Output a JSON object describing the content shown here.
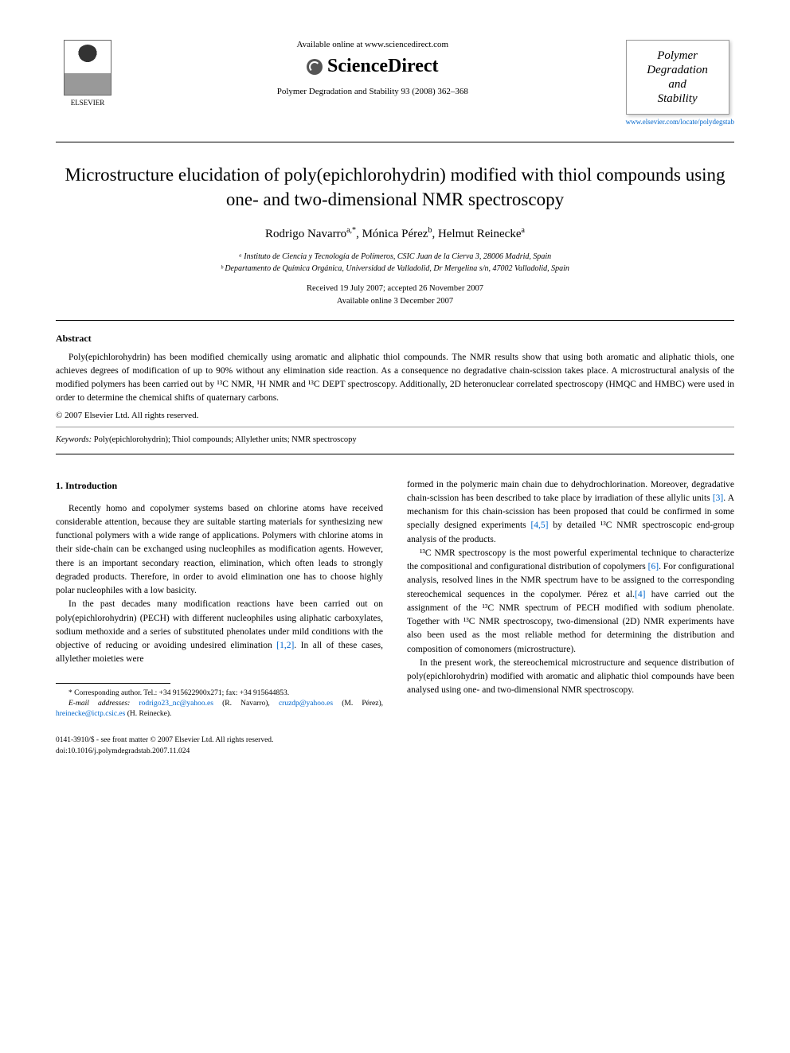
{
  "header": {
    "publisher_name": "ELSEVIER",
    "available_text": "Available online at www.sciencedirect.com",
    "sciencedirect_label": "ScienceDirect",
    "journal_reference": "Polymer Degradation and Stability 93 (2008) 362–368",
    "journal_box_line1": "Polymer",
    "journal_box_line2": "Degradation",
    "journal_box_line3": "and",
    "journal_box_line4": "Stability",
    "journal_url": "www.elsevier.com/locate/polydegstab"
  },
  "title": "Microstructure elucidation of poly(epichlorohydrin) modified with thiol compounds using one- and two-dimensional NMR spectroscopy",
  "authors": {
    "a1_name": "Rodrigo Navarro",
    "a1_sup": "a,*",
    "a2_name": "Mónica Pérez",
    "a2_sup": "b",
    "a3_name": "Helmut Reinecke",
    "a3_sup": "a"
  },
  "affiliations": {
    "aff_a": "ᵃ Instituto de Ciencia y Tecnología de Polímeros, CSIC Juan de la Cierva 3, 28006 Madrid, Spain",
    "aff_b": "ᵇ Departamento de Química Orgánica, Universidad de Valladolid, Dr Mergelina s/n, 47002 Valladolid, Spain"
  },
  "dates": {
    "received": "Received 19 July 2007; accepted 26 November 2007",
    "online": "Available online 3 December 2007"
  },
  "abstract": {
    "heading": "Abstract",
    "text": "Poly(epichlorohydrin) has been modified chemically using aromatic and aliphatic thiol compounds. The NMR results show that using both aromatic and aliphatic thiols, one achieves degrees of modification of up to 90% without any elimination side reaction. As a consequence no degradative chain-scission takes place. A microstructural analysis of the modified polymers has been carried out by ¹³C NMR, ¹H NMR and ¹³C DEPT spectroscopy. Additionally, 2D heteronuclear correlated spectroscopy (HMQC and HMBC) were used in order to determine the chemical shifts of quaternary carbons.",
    "copyright": "© 2007 Elsevier Ltd. All rights reserved."
  },
  "keywords": {
    "label": "Keywords:",
    "text": " Poly(epichlorohydrin); Thiol compounds; Allylether units; NMR spectroscopy"
  },
  "body": {
    "section_heading": "1. Introduction",
    "col1_p1": "Recently homo and copolymer systems based on chlorine atoms have received considerable attention, because they are suitable starting materials for synthesizing new functional polymers with a wide range of applications. Polymers with chlorine atoms in their side-chain can be exchanged using nucleophiles as modification agents. However, there is an important secondary reaction, elimination, which often leads to strongly degraded products. Therefore, in order to avoid elimination one has to choose highly polar nucleophiles with a low basicity.",
    "col1_p2a": "In the past decades many modification reactions have been carried out on poly(epichlorohydrin) (PECH) with different nucleophiles using aliphatic carboxylates, sodium methoxide and a series of substituted phenolates under mild conditions with the objective of reducing or avoiding undesired elimination ",
    "col1_p2_ref": "[1,2]",
    "col1_p2b": ". In all of these cases, allylether moieties were",
    "col2_p1a": "formed in the polymeric main chain due to dehydrochlorination. Moreover, degradative chain-scission has been described to take place by irradiation of these allylic units ",
    "col2_p1_ref1": "[3]",
    "col2_p1b": ". A mechanism for this chain-scission has been proposed that could be confirmed in some specially designed experiments ",
    "col2_p1_ref2": "[4,5]",
    "col2_p1c": " by detailed ¹³C NMR spectroscopic end-group analysis of the products.",
    "col2_p2a": "¹³C NMR spectroscopy is the most powerful experimental technique to characterize the compositional and configurational distribution of copolymers ",
    "col2_p2_ref1": "[6]",
    "col2_p2b": ". For configurational analysis, resolved lines in the NMR spectrum have to be assigned to the corresponding stereochemical sequences in the copolymer. Pérez et al.",
    "col2_p2_ref2": "[4]",
    "col2_p2c": " have carried out the assignment of the ¹³C NMR spectrum of PECH modified with sodium phenolate. Together with ¹³C NMR spectroscopy, two-dimensional (2D) NMR experiments have also been used as the most reliable method for determining the distribution and composition of comonomers (microstructure).",
    "col2_p3": "In the present work, the stereochemical microstructure and sequence distribution of poly(epichlorohydrin) modified with aromatic and aliphatic thiol compounds have been analysed using one- and two-dimensional NMR spectroscopy."
  },
  "footnote": {
    "corr": "* Corresponding author. Tel.: +34 915622900x271; fax: +34 915644853.",
    "email_label": "E-mail addresses:",
    "email1": "rodrigo23_nc@yahoo.es",
    "email1_name": " (R. Navarro), ",
    "email2": "cruzdp@yahoo.es",
    "email2_name": " (M. Pérez), ",
    "email3": "hreinecke@ictp.csic.es",
    "email3_name": " (H. Reinecke)."
  },
  "footer": {
    "issn": "0141-3910/$ - see front matter © 2007 Elsevier Ltd. All rights reserved.",
    "doi": "doi:10.1016/j.polymdegradstab.2007.11.024"
  },
  "colors": {
    "link": "#0066cc",
    "text": "#000000",
    "background": "#ffffff"
  }
}
